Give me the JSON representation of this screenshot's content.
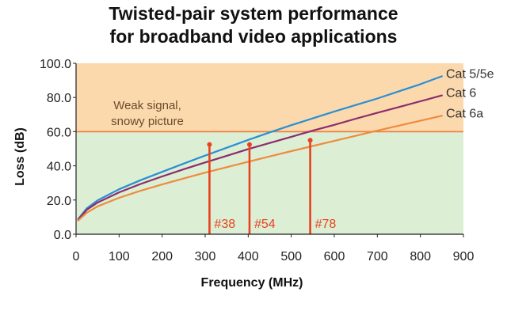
{
  "chart_data": {
    "type": "line",
    "title_lines": [
      "Twisted-pair system performance",
      "for broadband video applications"
    ],
    "xlabel": "Frequency (MHz)",
    "ylabel": "Loss (dB)",
    "xlim": [
      0,
      900
    ],
    "ylim": [
      0,
      100
    ],
    "x_ticks": [
      "0",
      "100",
      "200",
      "300",
      "400",
      "500",
      "600",
      "700",
      "800",
      "900"
    ],
    "y_ticks": [
      "0.0",
      "20.0",
      "40.0",
      "60.0",
      "80.0",
      "100.0"
    ],
    "threshold": {
      "value": 60,
      "color": "#f07c3c"
    },
    "zones": [
      {
        "from": 60,
        "to": 100,
        "color": "#fbd9ad",
        "label_lines": [
          "Weak signal,",
          "snowy picture"
        ]
      },
      {
        "from": 0,
        "to": 60,
        "color": "#dcefd4"
      }
    ],
    "series": [
      {
        "name": "Cat 5/5e",
        "color": "#2a8fd4",
        "x": [
          5,
          25,
          50,
          100,
          150,
          200,
          250,
          300,
          350,
          400,
          450,
          500,
          550,
          600,
          650,
          700,
          750,
          800,
          850
        ],
        "y": [
          8.9,
          15.2,
          19.8,
          26.3,
          31.6,
          36.5,
          41.3,
          46.0,
          50.6,
          55.2,
          59.6,
          63.8,
          67.8,
          71.8,
          75.6,
          79.4,
          83.6,
          87.8,
          92.4
        ]
      },
      {
        "name": "Cat 6",
        "color": "#8b2d6b",
        "x": [
          5,
          25,
          50,
          100,
          150,
          200,
          250,
          300,
          350,
          400,
          450,
          500,
          550,
          600,
          650,
          700,
          750,
          800,
          850
        ],
        "y": [
          8.6,
          14.3,
          18.5,
          24.5,
          29.4,
          33.8,
          38.0,
          42.0,
          45.9,
          49.8,
          53.4,
          57.0,
          60.6,
          64.0,
          67.6,
          71.0,
          74.4,
          77.8,
          81.2
        ]
      },
      {
        "name": "Cat 6a",
        "color": "#f08a3e",
        "x": [
          5,
          25,
          50,
          100,
          150,
          200,
          250,
          300,
          350,
          400,
          450,
          500,
          550,
          600,
          650,
          700,
          750,
          800,
          850
        ],
        "y": [
          8.0,
          12.6,
          16.3,
          21.3,
          25.4,
          29.1,
          32.6,
          36.0,
          39.2,
          42.4,
          45.5,
          48.6,
          51.6,
          54.6,
          57.6,
          60.6,
          63.5,
          66.4,
          69.3
        ]
      }
    ],
    "markers": [
      {
        "label": "#38",
        "x": 310,
        "y": 52.5,
        "color": "#e8421f"
      },
      {
        "label": "#54",
        "x": 403,
        "y": 52.5,
        "color": "#e8421f"
      },
      {
        "label": "#78",
        "x": 544,
        "y": 55.0,
        "color": "#e8421f"
      }
    ]
  }
}
